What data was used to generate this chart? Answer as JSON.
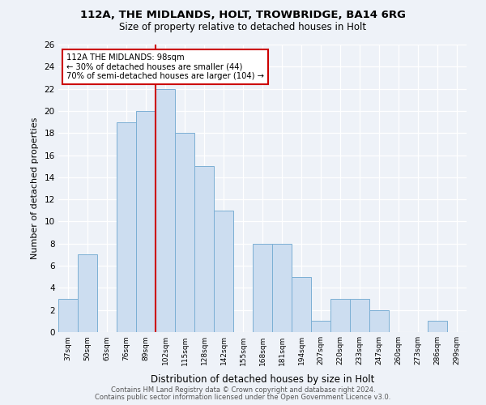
{
  "title1": "112A, THE MIDLANDS, HOLT, TROWBRIDGE, BA14 6RG",
  "title2": "Size of property relative to detached houses in Holt",
  "xlabel": "Distribution of detached houses by size in Holt",
  "ylabel": "Number of detached properties",
  "categories": [
    "37sqm",
    "50sqm",
    "63sqm",
    "76sqm",
    "89sqm",
    "102sqm",
    "115sqm",
    "128sqm",
    "142sqm",
    "155sqm",
    "168sqm",
    "181sqm",
    "194sqm",
    "207sqm",
    "220sqm",
    "233sqm",
    "247sqm",
    "260sqm",
    "273sqm",
    "286sqm",
    "299sqm"
  ],
  "values": [
    3,
    7,
    0,
    19,
    20,
    22,
    18,
    15,
    11,
    0,
    8,
    8,
    5,
    1,
    3,
    3,
    2,
    0,
    0,
    1,
    0
  ],
  "bar_color": "#ccddf0",
  "bar_edge_color": "#7bafd4",
  "annotation_text": "112A THE MIDLANDS: 98sqm\n← 30% of detached houses are smaller (44)\n70% of semi-detached houses are larger (104) →",
  "marker_color": "#cc0000",
  "red_line_index": 5,
  "ylim": [
    0,
    26
  ],
  "yticks": [
    0,
    2,
    4,
    6,
    8,
    10,
    12,
    14,
    16,
    18,
    20,
    22,
    24,
    26
  ],
  "footnote1": "Contains HM Land Registry data © Crown copyright and database right 2024.",
  "footnote2": "Contains public sector information licensed under the Open Government Licence v3.0.",
  "bg_color": "#eef2f8"
}
